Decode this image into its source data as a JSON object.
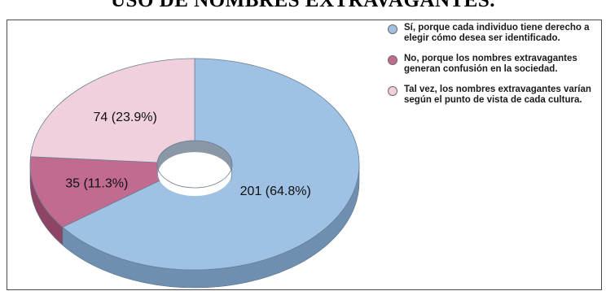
{
  "chart_data": {
    "type": "pie",
    "title": "USO DE NOMBRES EXTRAVAGANTES.",
    "style": "3d-donut",
    "categories": [
      "Sí, porque cada individuo tiene derecho a elegir cómo desea ser identificado.",
      "No, porque los nombres extravagantes generan confusión en la sociedad.",
      "Tal vez, los nombres extravagantes varían según el punto de vista de cada cultura."
    ],
    "values": [
      201,
      35,
      74
    ],
    "percentages": [
      64.8,
      11.3,
      23.9
    ],
    "data_labels": [
      "201 (64.8%)",
      "35 (11.3%)",
      "74 (23.9%)"
    ],
    "colors": [
      "#9fc1e3",
      "#c16b90",
      "#efd0dc"
    ],
    "side_colors": [
      "#6e8fb0",
      "#8e4465",
      "#c79fb0"
    ],
    "legend_position": "right"
  }
}
